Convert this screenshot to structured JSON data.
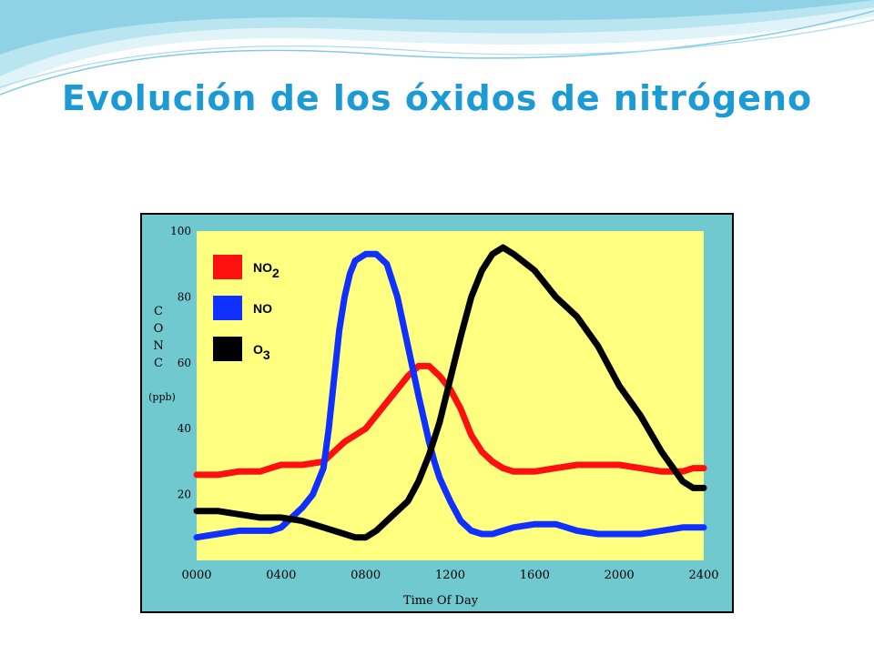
{
  "slide": {
    "title": "Evolución de los óxidos de nitrógeno"
  },
  "colors": {
    "title": "#1c9ad6",
    "frame_bg": "#6fc9cf",
    "plot_bg": "#ffff80",
    "no2": "#ff1010",
    "no": "#1030ff",
    "o3": "#000000"
  },
  "chart_data": {
    "type": "line",
    "xlabel": "Time Of Day",
    "ylabel_letters": [
      "C",
      "O",
      "N",
      "C"
    ],
    "ylabel_unit": "(ppb)",
    "xlim": [
      0,
      2400
    ],
    "ylim": [
      0,
      100
    ],
    "x_tick_labels": [
      "0000",
      "0400",
      "0800",
      "1200",
      "1600",
      "2000",
      "2400"
    ],
    "x_tick_values": [
      0,
      400,
      800,
      1200,
      1600,
      2000,
      2400
    ],
    "y_tick_labels": [
      "20",
      "40",
      "60",
      "80",
      "100"
    ],
    "y_tick_values": [
      20,
      40,
      60,
      80,
      100
    ],
    "legend_position": "top-left",
    "series": [
      {
        "name": "NO",
        "name_sub": "2",
        "color": "#ff1010",
        "x": [
          0,
          100,
          200,
          300,
          350,
          400,
          500,
          600,
          650,
          700,
          750,
          800,
          850,
          900,
          950,
          1000,
          1050,
          1100,
          1150,
          1200,
          1250,
          1300,
          1350,
          1400,
          1450,
          1500,
          1600,
          1700,
          1800,
          1900,
          2000,
          2100,
          2200,
          2300,
          2350,
          2400
        ],
        "y": [
          26,
          26,
          27,
          27,
          28,
          29,
          29,
          30,
          33,
          36,
          38,
          40,
          44,
          48,
          52,
          56,
          59,
          59,
          56,
          52,
          46,
          38,
          33,
          30,
          28,
          27,
          27,
          28,
          29,
          29,
          29,
          28,
          27,
          27,
          28,
          28
        ]
      },
      {
        "name": "NO",
        "color": "#1030ff",
        "x": [
          0,
          100,
          200,
          300,
          350,
          400,
          450,
          500,
          550,
          600,
          625,
          650,
          675,
          700,
          725,
          750,
          800,
          850,
          900,
          950,
          1000,
          1050,
          1100,
          1125,
          1150,
          1200,
          1250,
          1300,
          1350,
          1400,
          1450,
          1500,
          1600,
          1700,
          1800,
          1900,
          2000,
          2100,
          2200,
          2300,
          2400
        ],
        "y": [
          7,
          8,
          9,
          9,
          9,
          10,
          13,
          16,
          20,
          28,
          40,
          55,
          70,
          80,
          87,
          91,
          93,
          93,
          90,
          80,
          65,
          50,
          36,
          30,
          25,
          18,
          12,
          9,
          8,
          8,
          9,
          10,
          11,
          11,
          9,
          8,
          8,
          8,
          9,
          10,
          10
        ]
      },
      {
        "name": "O",
        "name_sub": "3",
        "color": "#000000",
        "x": [
          0,
          100,
          200,
          300,
          400,
          500,
          600,
          700,
          750,
          800,
          850,
          900,
          950,
          1000,
          1050,
          1100,
          1150,
          1200,
          1250,
          1300,
          1350,
          1400,
          1450,
          1500,
          1600,
          1700,
          1800,
          1900,
          2000,
          2100,
          2200,
          2300,
          2350,
          2400
        ],
        "y": [
          15,
          15,
          14,
          13,
          13,
          12,
          10,
          8,
          7,
          7,
          9,
          12,
          15,
          18,
          24,
          32,
          42,
          55,
          68,
          80,
          88,
          93,
          95,
          93,
          88,
          80,
          74,
          65,
          53,
          44,
          33,
          24,
          22,
          22
        ]
      }
    ]
  }
}
